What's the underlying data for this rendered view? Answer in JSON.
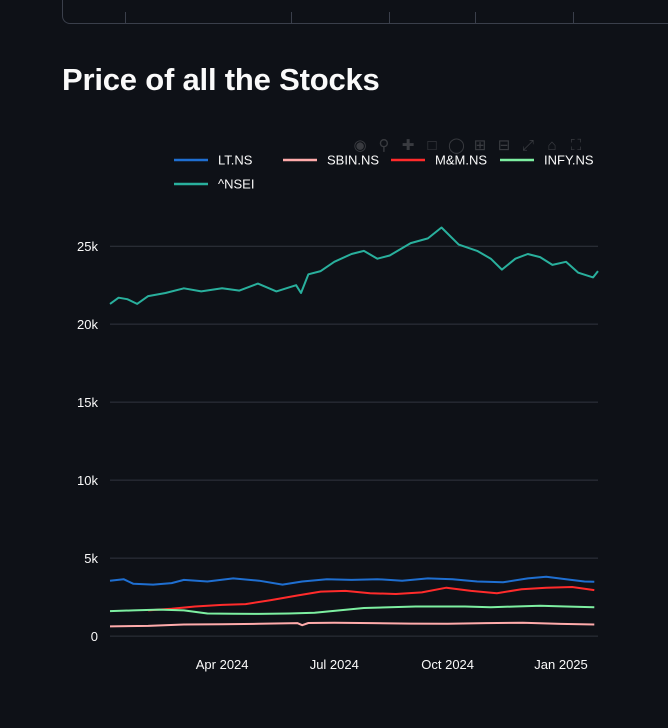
{
  "page": {
    "title": "Price of all the Stocks"
  },
  "modebar": {
    "icons": [
      "camera-icon",
      "zoom-icon",
      "pan-icon",
      "box-select-icon",
      "lasso-icon",
      "zoom-in-icon",
      "zoom-out-icon",
      "autoscale-icon",
      "reset-axes-icon",
      "fullscreen-icon"
    ]
  },
  "chart_data": {
    "type": "line",
    "title": "Price of all the Stocks",
    "xlabel": "",
    "ylabel": "",
    "x_range": [
      "2024-01-01",
      "2025-01-31"
    ],
    "ylim": [
      -700,
      27000
    ],
    "y_ticks": [
      0,
      5000,
      10000,
      15000,
      20000,
      25000
    ],
    "y_tick_labels": [
      "0",
      "5k",
      "10k",
      "15k",
      "20k",
      "25k"
    ],
    "x_ticks": [
      "2024-04-01",
      "2024-07-01",
      "2024-10-01",
      "2025-01-01"
    ],
    "x_tick_labels": [
      "Apr 2024",
      "Jul 2024",
      "Oct 2024",
      "Jan 2025"
    ],
    "grid": true,
    "legend_position": "top",
    "series": [
      {
        "name": "LT.NS",
        "color": "#1f6fd1",
        "points": [
          [
            "2024-01-01",
            3550
          ],
          [
            "2024-01-12",
            3650
          ],
          [
            "2024-01-20",
            3350
          ],
          [
            "2024-02-05",
            3300
          ],
          [
            "2024-02-20",
            3400
          ],
          [
            "2024-03-01",
            3600
          ],
          [
            "2024-03-20",
            3500
          ],
          [
            "2024-04-10",
            3700
          ],
          [
            "2024-05-01",
            3550
          ],
          [
            "2024-05-20",
            3300
          ],
          [
            "2024-06-05",
            3500
          ],
          [
            "2024-06-25",
            3650
          ],
          [
            "2024-07-15",
            3600
          ],
          [
            "2024-08-05",
            3650
          ],
          [
            "2024-08-25",
            3550
          ],
          [
            "2024-09-15",
            3700
          ],
          [
            "2024-10-05",
            3650
          ],
          [
            "2024-10-25",
            3500
          ],
          [
            "2024-11-15",
            3450
          ],
          [
            "2024-12-05",
            3700
          ],
          [
            "2024-12-20",
            3800
          ],
          [
            "2025-01-05",
            3650
          ],
          [
            "2025-01-20",
            3500
          ],
          [
            "2025-01-28",
            3480
          ]
        ]
      },
      {
        "name": "SBIN.NS",
        "color": "#ffabab",
        "points": [
          [
            "2024-01-01",
            620
          ],
          [
            "2024-02-01",
            650
          ],
          [
            "2024-03-01",
            740
          ],
          [
            "2024-04-01",
            760
          ],
          [
            "2024-05-01",
            790
          ],
          [
            "2024-06-01",
            830
          ],
          [
            "2024-06-05",
            700
          ],
          [
            "2024-06-10",
            840
          ],
          [
            "2024-07-01",
            850
          ],
          [
            "2024-08-01",
            830
          ],
          [
            "2024-09-01",
            800
          ],
          [
            "2024-10-01",
            790
          ],
          [
            "2024-11-01",
            830
          ],
          [
            "2024-12-01",
            850
          ],
          [
            "2025-01-01",
            780
          ],
          [
            "2025-01-28",
            740
          ]
        ]
      },
      {
        "name": "M&M.NS",
        "color": "#ff2b2b",
        "points": [
          [
            "2024-02-01",
            1650
          ],
          [
            "2024-02-20",
            1750
          ],
          [
            "2024-03-10",
            1900
          ],
          [
            "2024-04-01",
            2000
          ],
          [
            "2024-04-20",
            2050
          ],
          [
            "2024-05-10",
            2300
          ],
          [
            "2024-06-01",
            2600
          ],
          [
            "2024-06-20",
            2850
          ],
          [
            "2024-07-10",
            2900
          ],
          [
            "2024-07-30",
            2750
          ],
          [
            "2024-08-20",
            2700
          ],
          [
            "2024-09-10",
            2800
          ],
          [
            "2024-09-30",
            3100
          ],
          [
            "2024-10-20",
            2900
          ],
          [
            "2024-11-10",
            2750
          ],
          [
            "2024-11-30",
            3000
          ],
          [
            "2024-12-20",
            3100
          ],
          [
            "2025-01-10",
            3150
          ],
          [
            "2025-01-28",
            2950
          ]
        ]
      },
      {
        "name": "INFY.NS",
        "color": "#7defa1",
        "points": [
          [
            "2024-01-01",
            1600
          ],
          [
            "2024-01-20",
            1650
          ],
          [
            "2024-02-10",
            1700
          ],
          [
            "2024-03-01",
            1650
          ],
          [
            "2024-03-20",
            1450
          ],
          [
            "2024-04-10",
            1430
          ],
          [
            "2024-05-01",
            1420
          ],
          [
            "2024-05-25",
            1450
          ],
          [
            "2024-06-15",
            1500
          ],
          [
            "2024-07-05",
            1650
          ],
          [
            "2024-07-25",
            1800
          ],
          [
            "2024-08-15",
            1850
          ],
          [
            "2024-09-05",
            1900
          ],
          [
            "2024-09-25",
            1900
          ],
          [
            "2024-10-15",
            1900
          ],
          [
            "2024-11-05",
            1850
          ],
          [
            "2024-11-25",
            1900
          ],
          [
            "2024-12-15",
            1950
          ],
          [
            "2025-01-05",
            1900
          ],
          [
            "2025-01-28",
            1850
          ]
        ]
      },
      {
        "name": "^NSEI",
        "color": "#29b09d",
        "points": [
          [
            "2024-01-01",
            21300
          ],
          [
            "2024-01-08",
            21700
          ],
          [
            "2024-01-15",
            21600
          ],
          [
            "2024-01-23",
            21300
          ],
          [
            "2024-02-01",
            21800
          ],
          [
            "2024-02-15",
            22000
          ],
          [
            "2024-03-01",
            22300
          ],
          [
            "2024-03-15",
            22100
          ],
          [
            "2024-04-01",
            22300
          ],
          [
            "2024-04-15",
            22150
          ],
          [
            "2024-04-30",
            22600
          ],
          [
            "2024-05-15",
            22100
          ],
          [
            "2024-05-31",
            22500
          ],
          [
            "2024-06-04",
            22000
          ],
          [
            "2024-06-10",
            23200
          ],
          [
            "2024-06-20",
            23400
          ],
          [
            "2024-07-01",
            24000
          ],
          [
            "2024-07-15",
            24500
          ],
          [
            "2024-07-25",
            24700
          ],
          [
            "2024-08-05",
            24200
          ],
          [
            "2024-08-15",
            24400
          ],
          [
            "2024-09-01",
            25200
          ],
          [
            "2024-09-15",
            25500
          ],
          [
            "2024-09-26",
            26200
          ],
          [
            "2024-10-10",
            25100
          ],
          [
            "2024-10-25",
            24700
          ],
          [
            "2024-11-05",
            24200
          ],
          [
            "2024-11-14",
            23500
          ],
          [
            "2024-11-25",
            24200
          ],
          [
            "2024-12-05",
            24500
          ],
          [
            "2024-12-15",
            24300
          ],
          [
            "2024-12-25",
            23800
          ],
          [
            "2025-01-05",
            24000
          ],
          [
            "2025-01-15",
            23300
          ],
          [
            "2025-01-27",
            23000
          ],
          [
            "2025-01-31",
            23400
          ]
        ]
      }
    ]
  }
}
